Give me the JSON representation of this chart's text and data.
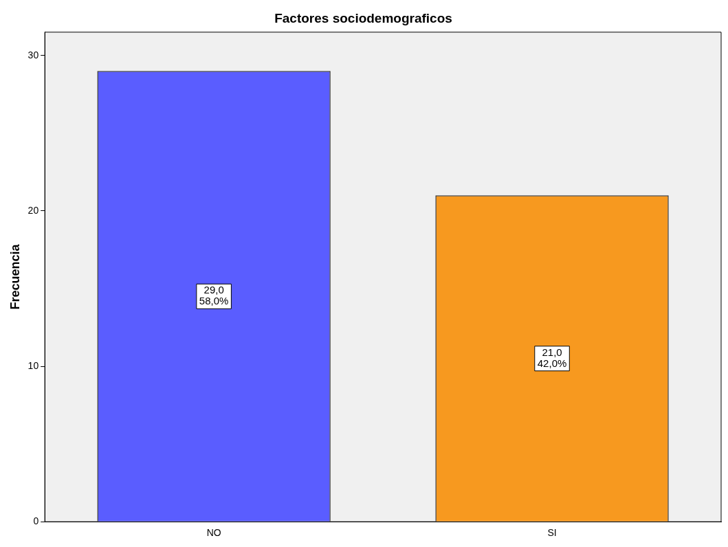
{
  "chart_data": {
    "type": "bar",
    "title": "Factores sociodemograficos",
    "ylabel": "Frecuencia",
    "categories": [
      "NO",
      "SI"
    ],
    "values": [
      29,
      21
    ],
    "colors": [
      "#5a5dff",
      "#f7991f"
    ],
    "value_labels": [
      "29,0\n58,0%",
      "21,0\n42,0%"
    ],
    "ylim": [
      0,
      31.5
    ],
    "yticks": [
      0,
      10,
      20,
      30
    ],
    "grid": false,
    "legend": false
  }
}
